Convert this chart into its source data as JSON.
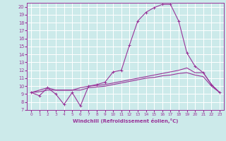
{
  "background_color": "#cceaea",
  "grid_color": "#ffffff",
  "line_color": "#993399",
  "xlabel": "Windchill (Refroidissement éolien,°C)",
  "xlabel_color": "#993399",
  "xlim": [
    -0.5,
    23.5
  ],
  "ylim": [
    7,
    20.5
  ],
  "yticks": [
    7,
    8,
    9,
    10,
    11,
    12,
    13,
    14,
    15,
    16,
    17,
    18,
    19,
    20
  ],
  "xticks": [
    0,
    1,
    2,
    3,
    4,
    5,
    6,
    7,
    8,
    9,
    10,
    11,
    12,
    13,
    14,
    15,
    16,
    17,
    18,
    19,
    20,
    21,
    22,
    23
  ],
  "line1_x": [
    0,
    1,
    2,
    3,
    4,
    5,
    6,
    7,
    8,
    9,
    10,
    11,
    12,
    13,
    14,
    15,
    16,
    17,
    18,
    19,
    20,
    21,
    22,
    23
  ],
  "line1_y": [
    9.2,
    8.8,
    9.8,
    9.0,
    7.7,
    9.2,
    7.5,
    10.0,
    10.2,
    10.5,
    11.8,
    12.0,
    15.2,
    18.2,
    19.3,
    19.9,
    20.3,
    20.3,
    18.2,
    14.2,
    12.5,
    11.7,
    10.2,
    9.2
  ],
  "line2_x": [
    0,
    1,
    2,
    3,
    4,
    5,
    6,
    7,
    8,
    9,
    10,
    11,
    12,
    13,
    14,
    15,
    16,
    17,
    18,
    19,
    20,
    21,
    22,
    23
  ],
  "line2_y": [
    9.2,
    9.5,
    9.8,
    9.5,
    9.5,
    9.5,
    9.8,
    10.0,
    10.1,
    10.2,
    10.4,
    10.6,
    10.8,
    11.0,
    11.2,
    11.4,
    11.6,
    11.8,
    12.0,
    12.3,
    11.7,
    11.7,
    10.2,
    9.2
  ],
  "line3_x": [
    0,
    1,
    2,
    3,
    4,
    5,
    6,
    7,
    8,
    9,
    10,
    11,
    12,
    13,
    14,
    15,
    16,
    17,
    18,
    19,
    20,
    21,
    22,
    23
  ],
  "line3_y": [
    9.2,
    9.3,
    9.5,
    9.5,
    9.5,
    9.5,
    9.5,
    9.8,
    9.9,
    10.0,
    10.2,
    10.4,
    10.6,
    10.8,
    11.0,
    11.1,
    11.3,
    11.4,
    11.6,
    11.7,
    11.4,
    11.2,
    10.0,
    9.2
  ]
}
